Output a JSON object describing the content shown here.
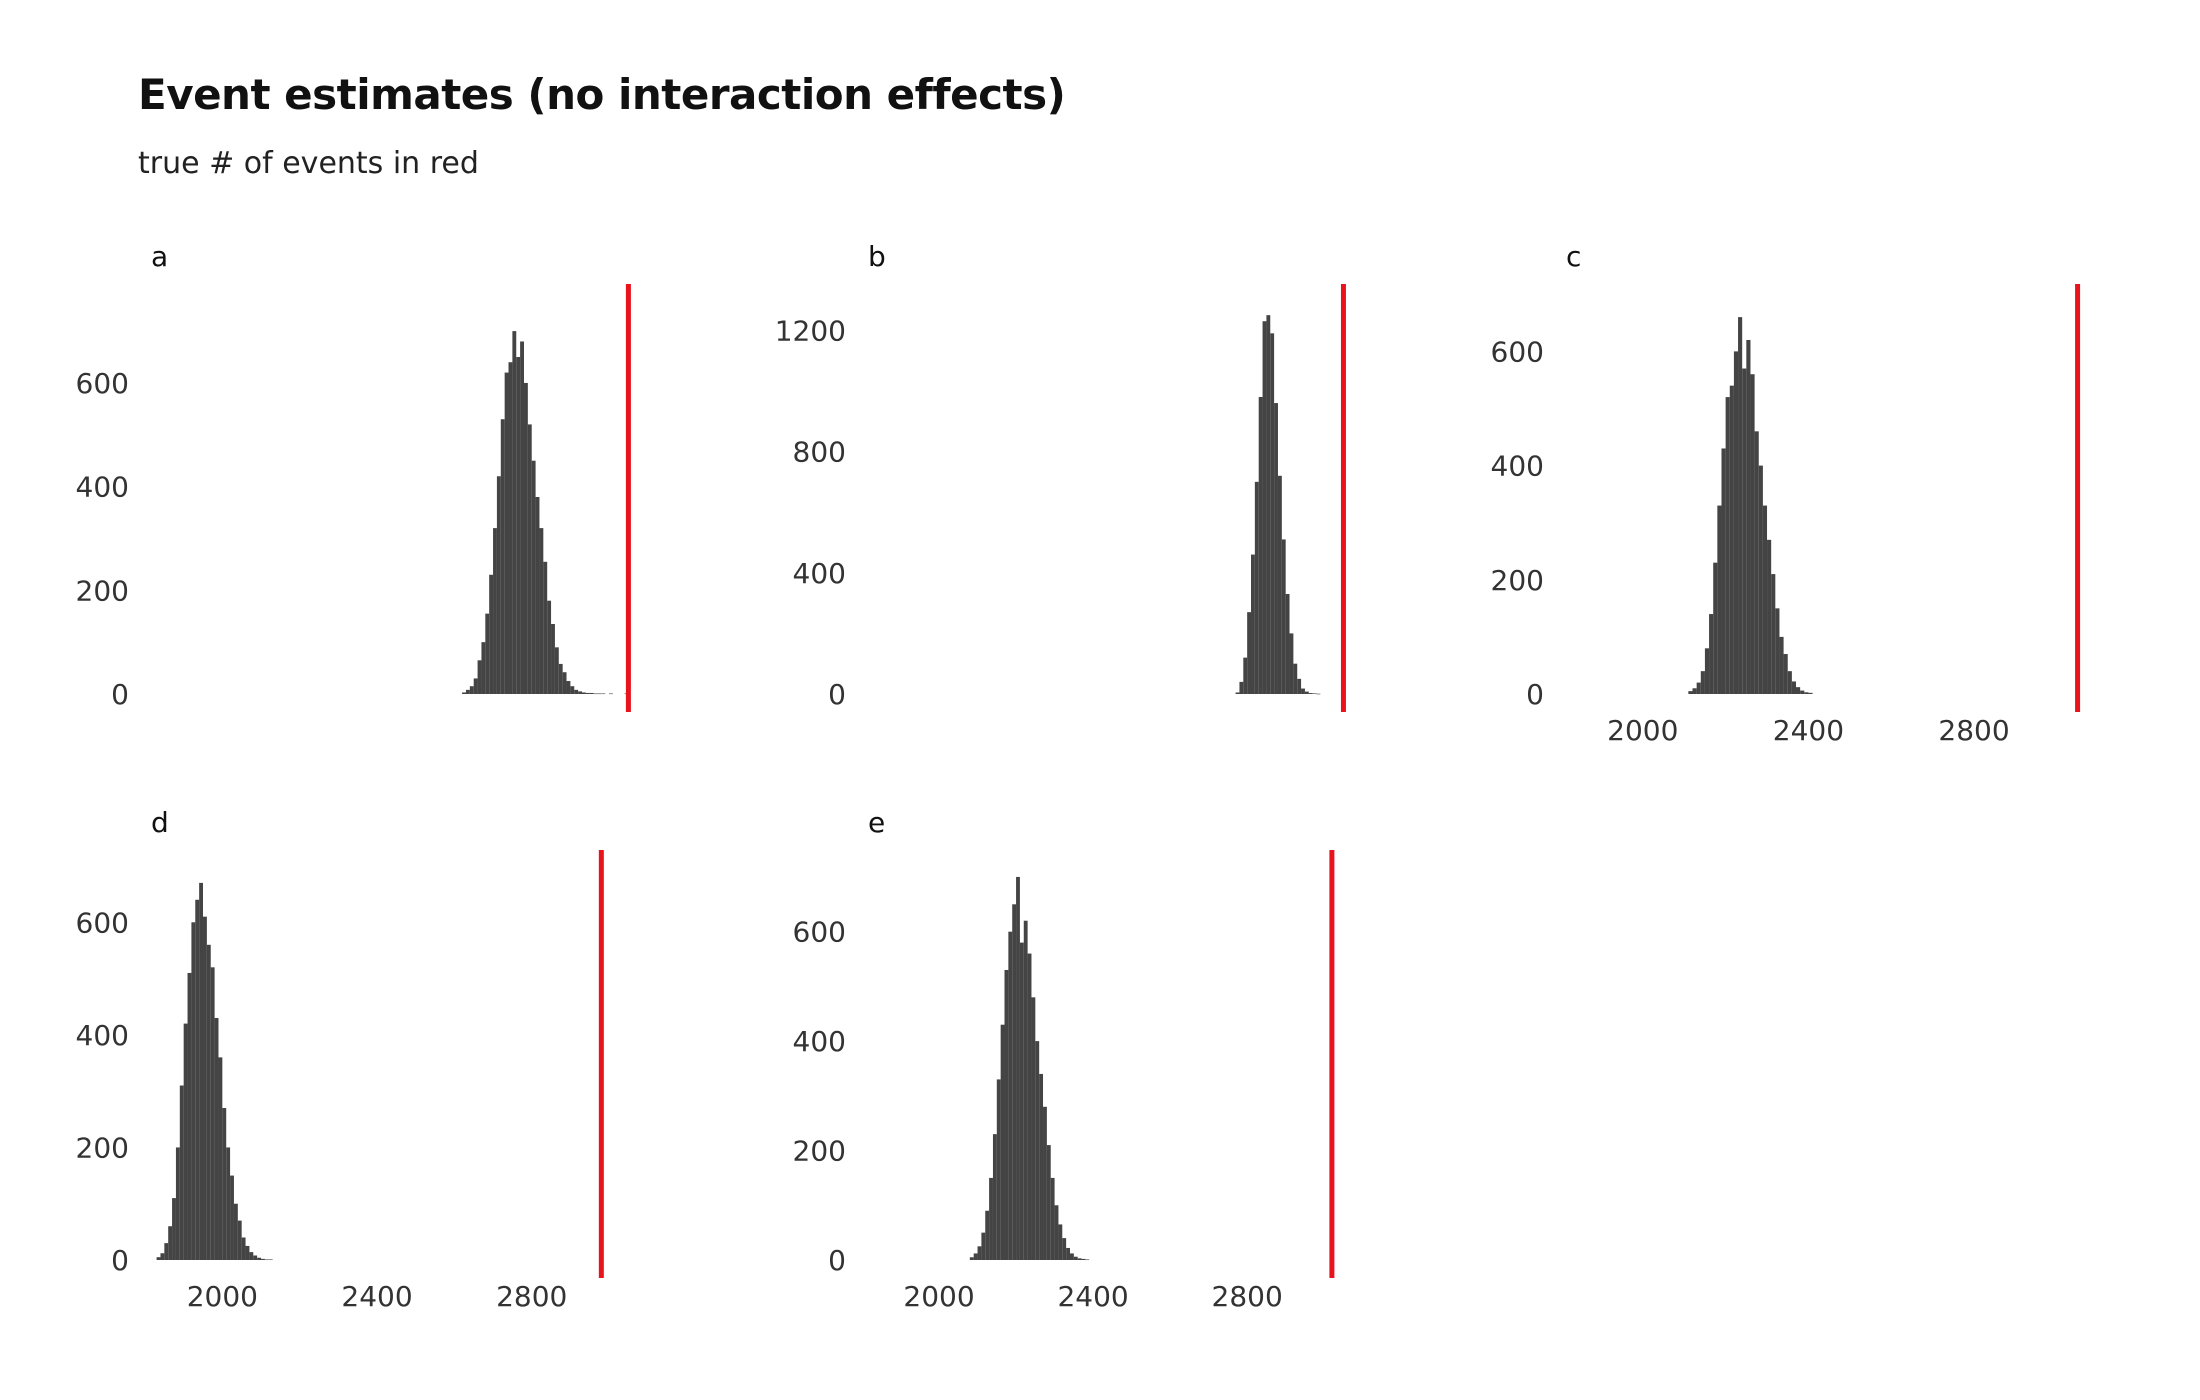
{
  "title": "Event estimates (no interaction effects)",
  "subtitle": "true # of events in red",
  "colors": {
    "bars": "#444444",
    "true_line": "#e8131b",
    "axis_text": "#333333"
  },
  "chart_data": [
    {
      "type": "histogram",
      "panel": "a",
      "x_ticks": [],
      "y_ticks": [
        0,
        200,
        400,
        600
      ],
      "xlim": [
        1800,
        3080
      ],
      "ylim": [
        0,
        760
      ],
      "true_value": 3050,
      "bin_width": 10,
      "bins_x": [
        2620,
        2630,
        2640,
        2650,
        2660,
        2670,
        2680,
        2690,
        2700,
        2710,
        2720,
        2730,
        2740,
        2750,
        2760,
        2770,
        2780,
        2790,
        2800,
        2810,
        2820,
        2830,
        2840,
        2850,
        2860,
        2870,
        2880,
        2890,
        2900,
        2910,
        2920,
        2930,
        2940,
        2950,
        2960,
        2970,
        2980,
        2990,
        3000,
        3010,
        3020,
        3030,
        3040
      ],
      "counts": [
        3,
        8,
        15,
        30,
        65,
        100,
        155,
        230,
        320,
        420,
        530,
        620,
        640,
        700,
        650,
        680,
        600,
        520,
        450,
        380,
        320,
        255,
        180,
        135,
        90,
        58,
        42,
        25,
        15,
        8,
        5,
        3,
        2,
        2,
        1,
        1,
        1,
        0,
        1,
        0,
        0,
        0,
        1
      ]
    },
    {
      "type": "histogram",
      "panel": "b",
      "x_ticks": [],
      "y_ticks": [
        0,
        400,
        800,
        1200
      ],
      "xlim": [
        1800,
        3080
      ],
      "ylim": [
        0,
        1300
      ],
      "true_value": 3050,
      "bin_width": 10,
      "bins_x": [
        2770,
        2780,
        2790,
        2800,
        2810,
        2820,
        2830,
        2840,
        2850,
        2860,
        2870,
        2880,
        2890,
        2900,
        2910,
        2920,
        2930,
        2940,
        2950,
        2960,
        2970,
        2980
      ],
      "counts": [
        5,
        40,
        120,
        270,
        460,
        700,
        980,
        1230,
        1250,
        1190,
        960,
        720,
        510,
        330,
        200,
        100,
        50,
        18,
        8,
        3,
        2,
        1
      ]
    },
    {
      "type": "histogram",
      "panel": "c",
      "x_ticks": [
        2000,
        2400,
        2800
      ],
      "y_ticks": [
        0,
        200,
        400,
        600
      ],
      "xlim": [
        1800,
        3080
      ],
      "ylim": [
        0,
        690
      ],
      "true_value": 3050,
      "bin_width": 10,
      "bins_x": [
        2110,
        2120,
        2130,
        2140,
        2150,
        2160,
        2170,
        2180,
        2190,
        2200,
        2210,
        2220,
        2230,
        2240,
        2250,
        2260,
        2270,
        2280,
        2290,
        2300,
        2310,
        2320,
        2330,
        2340,
        2350,
        2360,
        2370,
        2380,
        2390,
        2400
      ],
      "counts": [
        5,
        10,
        20,
        40,
        80,
        140,
        230,
        330,
        430,
        520,
        540,
        600,
        660,
        570,
        620,
        560,
        460,
        400,
        330,
        270,
        210,
        150,
        100,
        70,
        40,
        22,
        12,
        6,
        3,
        2
      ]
    },
    {
      "type": "histogram",
      "panel": "d",
      "x_ticks": [
        2000,
        2400,
        2800
      ],
      "y_ticks": [
        0,
        200,
        400,
        600
      ],
      "xlim": [
        1800,
        3080
      ],
      "ylim": [
        0,
        700
      ],
      "true_value": 2980,
      "bin_width": 10,
      "bins_x": [
        1830,
        1840,
        1850,
        1860,
        1870,
        1880,
        1890,
        1900,
        1910,
        1920,
        1930,
        1940,
        1950,
        1960,
        1970,
        1980,
        1990,
        2000,
        2010,
        2020,
        2030,
        2040,
        2050,
        2060,
        2070,
        2080,
        2090,
        2100,
        2110,
        2120
      ],
      "counts": [
        5,
        12,
        30,
        60,
        110,
        200,
        310,
        420,
        510,
        600,
        640,
        670,
        610,
        560,
        520,
        430,
        360,
        270,
        200,
        150,
        100,
        70,
        40,
        25,
        14,
        8,
        4,
        2,
        1,
        1
      ]
    },
    {
      "type": "histogram",
      "panel": "e",
      "x_ticks": [
        2000,
        2400,
        2800
      ],
      "y_ticks": [
        0,
        200,
        400,
        600
      ],
      "xlim": [
        1800,
        3080
      ],
      "ylim": [
        0,
        720
      ],
      "true_value": 3020,
      "bin_width": 10,
      "bins_x": [
        2080,
        2090,
        2100,
        2110,
        2120,
        2130,
        2140,
        2150,
        2160,
        2170,
        2180,
        2190,
        2200,
        2210,
        2220,
        2230,
        2240,
        2250,
        2260,
        2270,
        2280,
        2290,
        2300,
        2310,
        2320,
        2330,
        2340,
        2350,
        2360,
        2370,
        2380
      ],
      "counts": [
        5,
        12,
        25,
        50,
        90,
        150,
        230,
        330,
        430,
        530,
        600,
        650,
        700,
        580,
        620,
        560,
        480,
        400,
        340,
        280,
        210,
        150,
        100,
        65,
        40,
        22,
        12,
        6,
        3,
        2,
        1
      ]
    }
  ]
}
